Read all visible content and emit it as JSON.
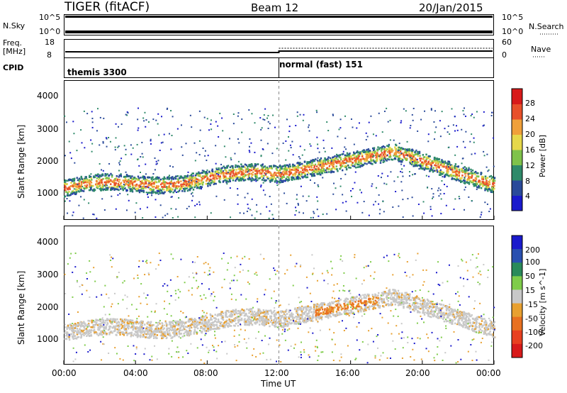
{
  "header": {
    "radar": "TIGER (fitACF)",
    "beam": "Beam 12",
    "date": "20/Jan/2015"
  },
  "top_panels": {
    "nsky_label": "N.Sky",
    "nsky_ticks": [
      "10^5",
      "10^0"
    ],
    "nsearch_label": "N.Search",
    "nsearch_ticks": [
      "10^5",
      "10^0"
    ],
    "freq_label_1": "Freq.",
    "freq_label_2": "[MHz]",
    "freq_ticks": [
      "18",
      "8"
    ],
    "nave_label": "Nave",
    "nave_ticks": [
      "60",
      "0"
    ],
    "cpid_label": "CPID",
    "cpid_segments": [
      "themis 3300",
      "normal (fast) 151"
    ]
  },
  "power_panel": {
    "ylabel": "Slant Range [km]",
    "yticks": [
      "4000",
      "3000",
      "2000",
      "1000"
    ],
    "colorbar_label": "Power [dB]",
    "colorbar_ticks": [
      "28",
      "24",
      "20",
      "16",
      "12",
      "8",
      "4"
    ],
    "colors": [
      "#1a1acc",
      "#2a4a9a",
      "#2f8a6a",
      "#7fc24a",
      "#e6d84a",
      "#f0a03a",
      "#e8502a",
      "#d81a1a"
    ]
  },
  "velocity_panel": {
    "ylabel": "Slant Range [km]",
    "yticks": [
      "4000",
      "3000",
      "2000",
      "1000"
    ],
    "colorbar_label": "Velocity [m s^-1]",
    "colorbar_ticks": [
      "200",
      "100",
      "50",
      "15",
      "-15",
      "-50",
      "-100",
      "-200"
    ],
    "colors": [
      "#1a1acc",
      "#2a50b0",
      "#2a8a5a",
      "#7fcc4a",
      "#c8c8c8",
      "#e8a030",
      "#e87020",
      "#e84020",
      "#d81a1a"
    ]
  },
  "x_axis": {
    "ticks": [
      "00:00",
      "04:00",
      "08:00",
      "12:00",
      "16:00",
      "20:00",
      "00:00"
    ],
    "label": "Time UT"
  },
  "chart_data": {
    "type": "heatmap",
    "title": "TIGER (fitACF) Beam 12 20/Jan/2015",
    "xlabel": "Time UT",
    "x_ticks": [
      "00:00",
      "04:00",
      "08:00",
      "12:00",
      "16:00",
      "20:00",
      "00:00"
    ],
    "ylabel": "Slant Range [km]",
    "ylim": [
      180,
      4500
    ],
    "panels": [
      {
        "name": "Power",
        "unit": "dB",
        "colorbar": [
          4,
          8,
          12,
          16,
          20,
          24,
          28
        ]
      },
      {
        "name": "Velocity",
        "unit": "m s^-1",
        "colorbar": [
          -200,
          -100,
          -50,
          -15,
          15,
          50,
          100,
          200
        ]
      }
    ],
    "cpid": [
      {
        "label": "themis 3300",
        "start": "00:00",
        "end": "12:00"
      },
      {
        "label": "normal (fast) 151",
        "start": "12:00",
        "end": "00:00"
      }
    ]
  }
}
